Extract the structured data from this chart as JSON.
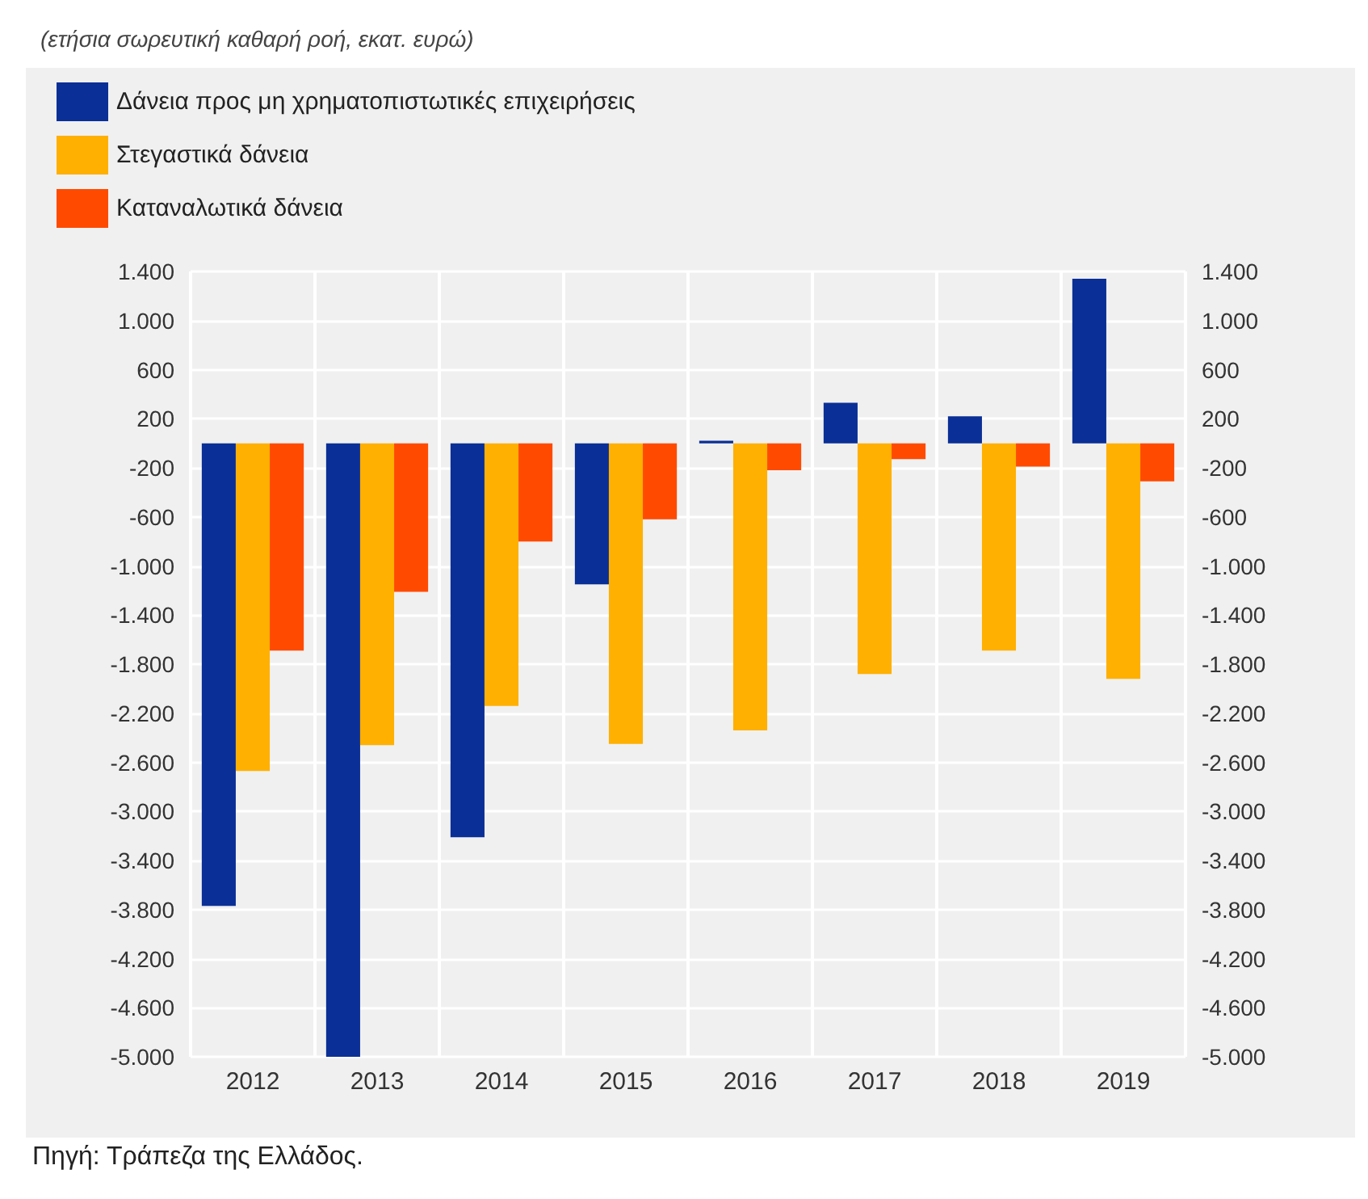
{
  "chart_data": {
    "type": "bar",
    "title": "(ετήσια σωρευτική καθαρή ροή, εκατ. ευρώ)",
    "annotations": [
      "Πηγή: Τράπεζα της Ελλάδος."
    ],
    "categories": [
      "2012",
      "2013",
      "2014",
      "2015",
      "2016",
      "2017",
      "2018",
      "2019"
    ],
    "series": [
      {
        "name": "Δάνεια προς μη χρηματοπιστωτικές επιχειρήσεις",
        "color": "#0a2f96",
        "values": [
          -3770,
          -5000,
          -3210,
          -1150,
          20,
          330,
          220,
          1340
        ]
      },
      {
        "name": "Στεγαστικά δάνεια",
        "color": "#ffb000",
        "values": [
          -2670,
          -2460,
          -2140,
          -2450,
          -2340,
          -1880,
          -1690,
          -1920
        ]
      },
      {
        "name": "Καταναλωτικά δάνεια",
        "color": "#ff4a00",
        "values": [
          -1690,
          -1210,
          -800,
          -620,
          -220,
          -130,
          -190,
          -310
        ]
      }
    ],
    "ylim": [
      -5000,
      1400
    ],
    "yticks": [
      {
        "value": 1400,
        "label": "1.400"
      },
      {
        "value": 1000,
        "label": "1.000"
      },
      600,
      200,
      -200,
      -600,
      {
        "value": -1000,
        "label": "-1.000"
      },
      {
        "value": -1400,
        "label": "-1.400"
      },
      {
        "value": -1800,
        "label": "-1.800"
      },
      {
        "value": -2200,
        "label": "-2.200"
      },
      {
        "value": -2600,
        "label": "-2.600"
      },
      {
        "value": -3000,
        "label": "-3.000"
      },
      {
        "value": -3400,
        "label": "-3.400"
      },
      {
        "value": -3800,
        "label": "-3.800"
      },
      {
        "value": -4200,
        "label": "-4.200"
      },
      {
        "value": -4600,
        "label": "-4.600"
      },
      {
        "value": -5000,
        "label": "-5.000"
      }
    ],
    "y2lim": [
      -5000,
      1400
    ],
    "y2ticks": [
      {
        "value": 1400,
        "label": "1.400"
      },
      {
        "value": 1000,
        "label": "1.000"
      },
      600,
      200,
      -200,
      -600,
      {
        "value": -1000,
        "label": "-1.000"
      },
      {
        "value": -1400,
        "label": "-1.400"
      },
      {
        "value": -1800,
        "label": "-1.800"
      },
      {
        "value": -2200,
        "label": "-2.200"
      },
      {
        "value": -2600,
        "label": "-2.600"
      },
      {
        "value": -3000,
        "label": "-3.000"
      },
      {
        "value": -3400,
        "label": "-3.400"
      },
      {
        "value": -3800,
        "label": "-3.800"
      },
      {
        "value": -4200,
        "label": "-4.200"
      },
      {
        "value": -4600,
        "label": "-4.600"
      },
      {
        "value": -5000,
        "label": "-5.000"
      }
    ],
    "grid": true,
    "legend": "top left"
  }
}
